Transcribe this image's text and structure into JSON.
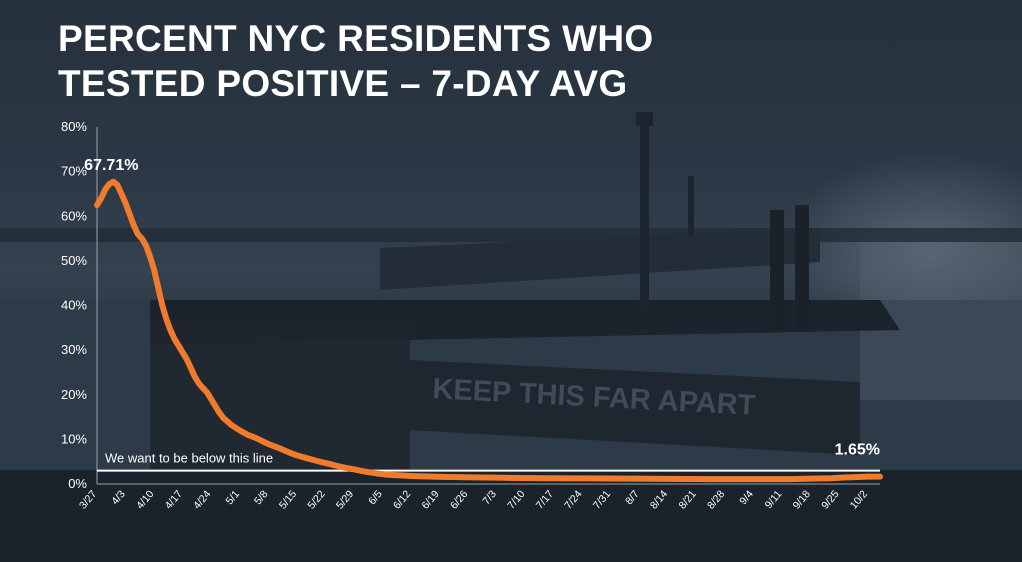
{
  "title_lines": [
    "PERCENT NYC RESIDENTS WHO",
    "TESTED POSITIVE – 7-DAY AVG"
  ],
  "backdrop_sign_text": "KEEP THIS FAR APART",
  "colors": {
    "line": "#f07b2c",
    "reference": "#ffffff",
    "text": "#ffffff"
  },
  "chart_data": {
    "type": "line",
    "title": "PERCENT NYC RESIDENTS WHO TESTED POSITIVE – 7-DAY AVG",
    "xlabel": "",
    "ylabel": "",
    "ylim": [
      0,
      80
    ],
    "y_ticks": [
      0,
      10,
      20,
      30,
      40,
      50,
      60,
      70,
      80
    ],
    "y_tick_labels": [
      "0%",
      "10%",
      "20%",
      "30%",
      "40%",
      "50%",
      "60%",
      "70%",
      "80%"
    ],
    "x_range": [
      0,
      192
    ],
    "x_ticks": [
      {
        "day": 0,
        "label": "3/27"
      },
      {
        "day": 7,
        "label": "4/3"
      },
      {
        "day": 14,
        "label": "4/10"
      },
      {
        "day": 21,
        "label": "4/17"
      },
      {
        "day": 28,
        "label": "4/24"
      },
      {
        "day": 35,
        "label": "5/1"
      },
      {
        "day": 42,
        "label": "5/8"
      },
      {
        "day": 49,
        "label": "5/15"
      },
      {
        "day": 56,
        "label": "5/22"
      },
      {
        "day": 63,
        "label": "5/29"
      },
      {
        "day": 70,
        "label": "6/5"
      },
      {
        "day": 77,
        "label": "6/12"
      },
      {
        "day": 84,
        "label": "6/19"
      },
      {
        "day": 91,
        "label": "6/26"
      },
      {
        "day": 98,
        "label": "7/3"
      },
      {
        "day": 105,
        "label": "7/10"
      },
      {
        "day": 112,
        "label": "7/17"
      },
      {
        "day": 119,
        "label": "7/24"
      },
      {
        "day": 126,
        "label": "7/31"
      },
      {
        "day": 133,
        "label": "8/7"
      },
      {
        "day": 140,
        "label": "8/14"
      },
      {
        "day": 147,
        "label": "8/21"
      },
      {
        "day": 154,
        "label": "8/28"
      },
      {
        "day": 161,
        "label": "9/4"
      },
      {
        "day": 168,
        "label": "9/11"
      },
      {
        "day": 175,
        "label": "9/18"
      },
      {
        "day": 182,
        "label": "9/25"
      },
      {
        "day": 189,
        "label": "10/2"
      }
    ],
    "series": [
      {
        "x": [
          0,
          1,
          2,
          3,
          4,
          5,
          6,
          7,
          8,
          9,
          10,
          11,
          12,
          13,
          14,
          15,
          16,
          17,
          18,
          19,
          20,
          21,
          22,
          23,
          24,
          25,
          26,
          27,
          28,
          29,
          30,
          31,
          32,
          33,
          35,
          37,
          39,
          41,
          43,
          45,
          47,
          49,
          51,
          53,
          55,
          57,
          59,
          61,
          63,
          65,
          67,
          69,
          71,
          73,
          75,
          77,
          80,
          85,
          90,
          100,
          110,
          120,
          130,
          140,
          150,
          160,
          170,
          175,
          180,
          183,
          186,
          189,
          192
        ],
        "y": [
          62.5,
          64.0,
          66.0,
          67.2,
          67.71,
          67.0,
          65.0,
          63.0,
          60.5,
          58.0,
          56.0,
          55.0,
          53.5,
          51.0,
          48.0,
          44.0,
          40.0,
          37.0,
          34.5,
          32.5,
          31.0,
          29.5,
          28.0,
          26.0,
          24.0,
          22.5,
          21.5,
          20.5,
          19.0,
          17.5,
          16.0,
          14.8,
          14.0,
          13.2,
          12.0,
          11.0,
          10.3,
          9.4,
          8.6,
          7.9,
          7.1,
          6.4,
          5.9,
          5.4,
          4.9,
          4.5,
          4.0,
          3.6,
          3.3,
          2.9,
          2.6,
          2.3,
          2.1,
          2.0,
          1.9,
          1.8,
          1.7,
          1.6,
          1.5,
          1.4,
          1.3,
          1.25,
          1.2,
          1.15,
          1.1,
          1.1,
          1.1,
          1.2,
          1.3,
          1.45,
          1.55,
          1.65,
          1.65
        ]
      }
    ],
    "annotations": [
      {
        "text": "67.71%",
        "x": 4,
        "y": 67.71
      },
      {
        "text": "1.65%",
        "x": 192,
        "y": 1.65
      }
    ],
    "reference_line": {
      "y": 3,
      "label": "We want to be below this line"
    },
    "grid": false,
    "legend": "none"
  }
}
